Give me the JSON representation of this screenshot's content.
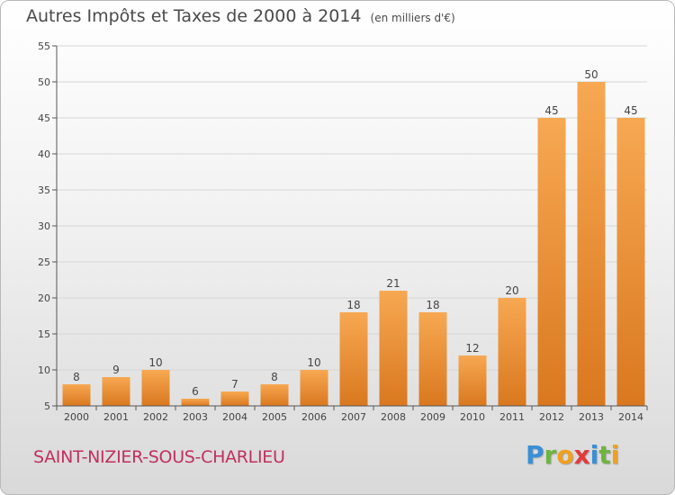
{
  "header": {
    "title": "Autres Impôts et Taxes de 2000 à 2014",
    "unit": "(en milliers d'€)"
  },
  "footer": {
    "commune": "SAINT-NIZIER-SOUS-CHARLIEU",
    "brand_letters": [
      {
        "char": "P",
        "color": "#3a8fd6"
      },
      {
        "char": "r",
        "color": "#6fb43f"
      },
      {
        "char": "o",
        "color": "#f0a020"
      },
      {
        "char": "x",
        "color": "#e23a3a"
      },
      {
        "char": "i",
        "color": "#3a8fd6"
      },
      {
        "char": "t",
        "color": "#6fb43f"
      },
      {
        "char": "i",
        "color": "#f0a020"
      }
    ]
  },
  "colors": {
    "bar_light": "#f7a852",
    "bar_dark": "#d9781f",
    "grid": "#d6d6d6",
    "axis": "#555555",
    "text": "#444444"
  },
  "chart_data": {
    "type": "bar",
    "categories": [
      "2000",
      "2001",
      "2002",
      "2003",
      "2004",
      "2005",
      "2006",
      "2007",
      "2008",
      "2009",
      "2010",
      "2011",
      "2012",
      "2013",
      "2014"
    ],
    "values": [
      8,
      9,
      10,
      6,
      7,
      8,
      10,
      18,
      21,
      18,
      12,
      20,
      45,
      50,
      45
    ],
    "title": "Autres Impôts et Taxes de 2000 à 2014",
    "xlabel": "",
    "ylabel": "",
    "ylim": [
      5,
      55
    ],
    "yticks": [
      5,
      10,
      15,
      20,
      25,
      30,
      35,
      40,
      45,
      50,
      55
    ],
    "grid": true,
    "data_labels": true
  }
}
